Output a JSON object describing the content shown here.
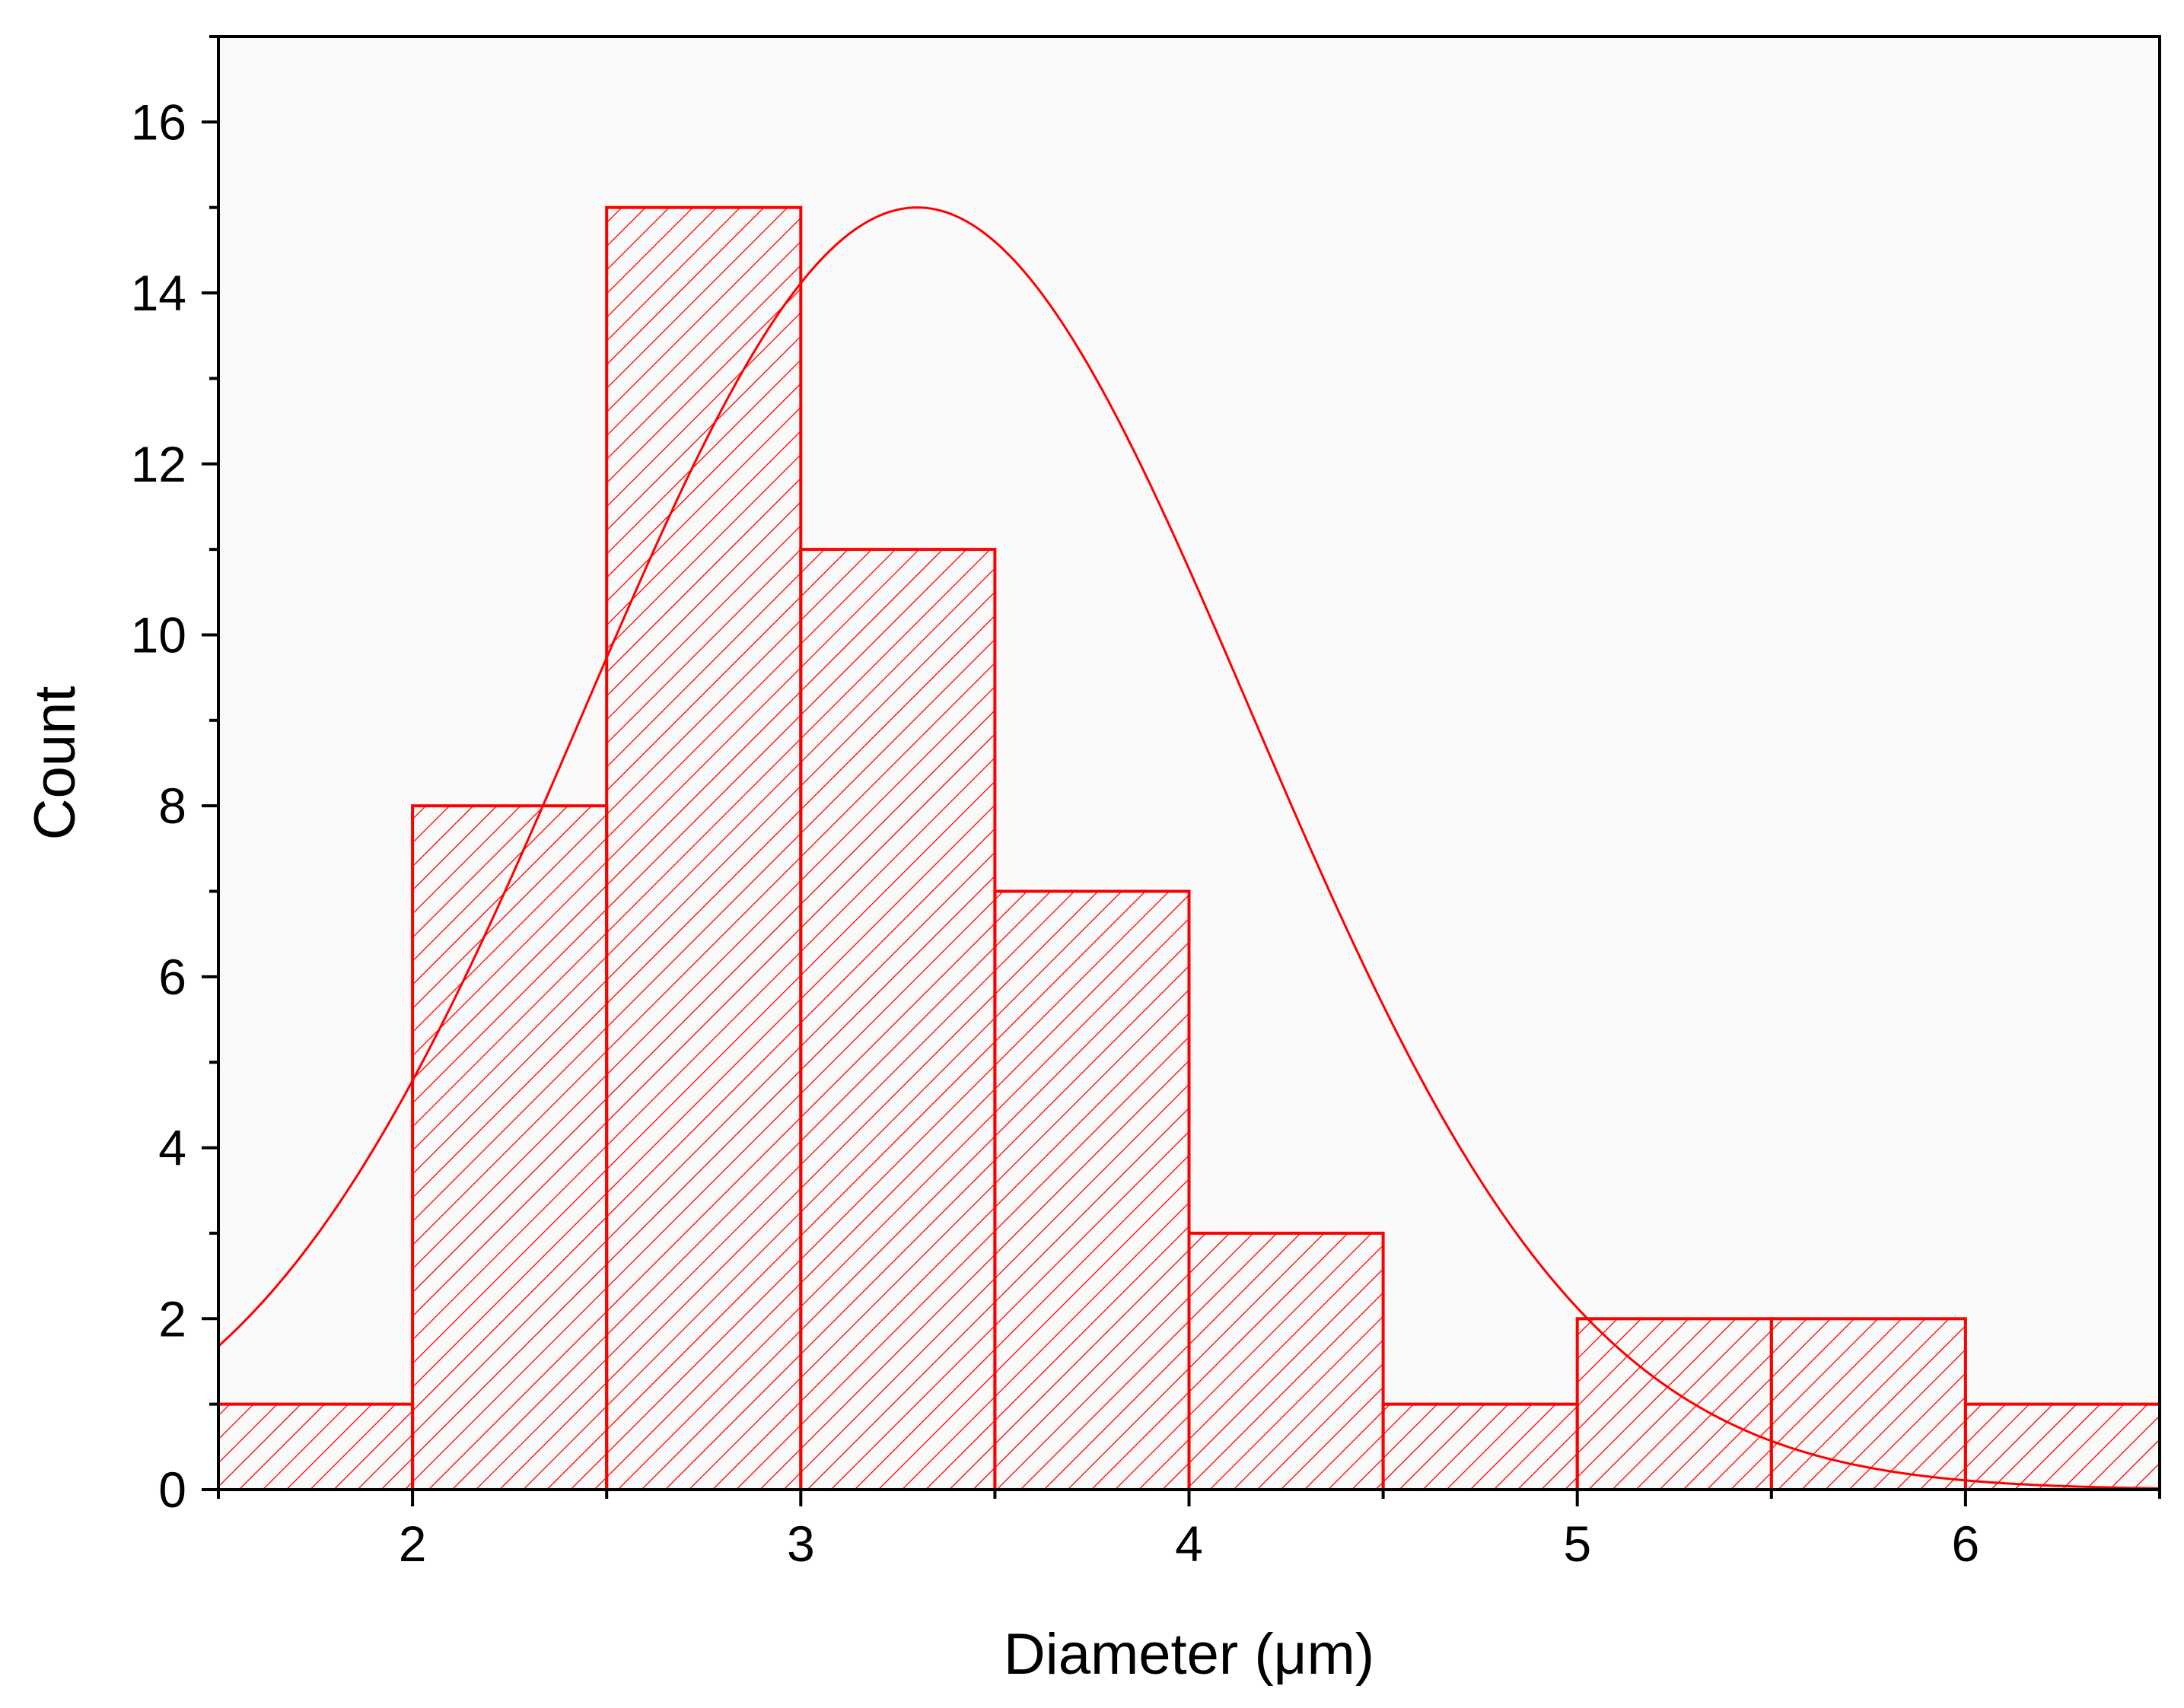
{
  "chart_data": {
    "type": "bar",
    "subtype": "histogram",
    "title": "",
    "xlabel": "Diameter (μm)",
    "ylabel": "Count",
    "xlim": [
      1.5,
      6.5
    ],
    "ylim": [
      0,
      17
    ],
    "bin_width": 0.5,
    "bins": [
      {
        "start": 1.5,
        "end": 2.0,
        "count": 1
      },
      {
        "start": 2.0,
        "end": 2.5,
        "count": 8
      },
      {
        "start": 2.5,
        "end": 3.0,
        "count": 15
      },
      {
        "start": 3.0,
        "end": 3.5,
        "count": 11
      },
      {
        "start": 3.5,
        "end": 4.0,
        "count": 7
      },
      {
        "start": 4.0,
        "end": 4.5,
        "count": 3
      },
      {
        "start": 4.5,
        "end": 5.0,
        "count": 1
      },
      {
        "start": 5.0,
        "end": 5.5,
        "count": 2
      },
      {
        "start": 5.5,
        "end": 6.0,
        "count": 2
      },
      {
        "start": 6.0,
        "end": 6.5,
        "count": 1
      }
    ],
    "fit_curve": {
      "type": "gaussian",
      "center": 3.3,
      "amplitude": 15,
      "sigma": 0.86
    },
    "x_ticks": [
      "2",
      "3",
      "4",
      "5",
      "6"
    ],
    "y_ticks": [
      "0",
      "2",
      "4",
      "6",
      "8",
      "10",
      "12",
      "14",
      "16"
    ],
    "grid": false,
    "legend": "none",
    "colors": {
      "bar_stroke": "#ff0000",
      "bar_hatch": "#ff0000",
      "fit_line": "#ff0000",
      "plot_background": "#fafafa",
      "axis": "#000000"
    }
  }
}
